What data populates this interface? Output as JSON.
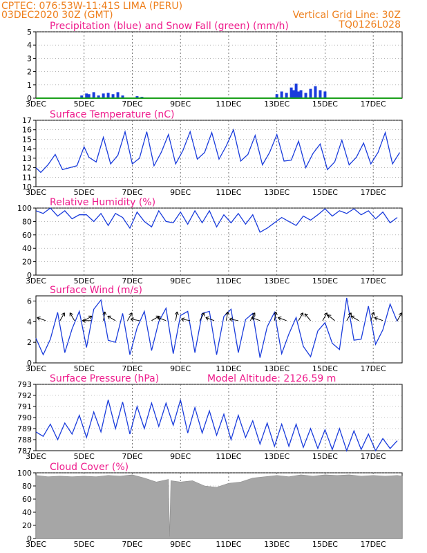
{
  "header": {
    "left_line1": "CPTEC:   076:53W-11:41S  LIMA (PERU)",
    "left_line2": "03DEC2020 30Z (GMT)",
    "right_line1": "Vertical Grid Line: 30Z",
    "right_line2": "TQ0126L028"
  },
  "colors": {
    "header": "#ee7f1c",
    "panel_title": "#ee1c8c",
    "series": "#1a3cdc",
    "snow": "#1aa01a",
    "cloud": "#a6a6a6"
  },
  "x_ticks": [
    "3DEC",
    "5DEC",
    "7DEC",
    "9DEC",
    "11DEC",
    "13DEC",
    "15DEC",
    "17DEC"
  ],
  "chart_data": [
    {
      "type": "bar",
      "title": "Precipitation (blue) and Snow Fall (green) (mm/h)",
      "ylim": [
        0,
        5
      ],
      "yticks": [
        "0",
        "1",
        "2",
        "3",
        "4",
        "5"
      ],
      "grid": "vertical dashed",
      "x_range_days": [
        3,
        18.2
      ],
      "series": [
        {
          "name": "Precipitation",
          "x": [
            4.9,
            5.1,
            5.2,
            5.4,
            5.6,
            5.8,
            6.0,
            6.2,
            6.4,
            6.6,
            7.2,
            7.4,
            13.0,
            13.2,
            13.4,
            13.6,
            13.7,
            13.8,
            13.9,
            14.0,
            14.2,
            14.4,
            14.6,
            14.8,
            15.0
          ],
          "values": [
            0.2,
            0.35,
            0.3,
            0.45,
            0.2,
            0.35,
            0.4,
            0.3,
            0.45,
            0.2,
            0.15,
            0.1,
            0.3,
            0.5,
            0.4,
            0.8,
            0.6,
            1.1,
            0.5,
            0.6,
            0.4,
            0.7,
            0.9,
            0.6,
            0.5
          ]
        },
        {
          "name": "Snow Fall",
          "x": [
            3,
            18.2
          ],
          "values": [
            0,
            0
          ]
        }
      ]
    },
    {
      "type": "line",
      "title": "Surface Temperature (nC)",
      "ylim": [
        10,
        17
      ],
      "yticks": [
        "10",
        "11",
        "12",
        "13",
        "14",
        "15",
        "16",
        "17"
      ],
      "x": [
        3.0,
        3.2,
        3.5,
        3.8,
        4.1,
        4.4,
        4.7,
        5.0,
        5.2,
        5.5,
        5.8,
        6.1,
        6.4,
        6.7,
        7.0,
        7.3,
        7.6,
        7.9,
        8.2,
        8.5,
        8.8,
        9.1,
        9.4,
        9.7,
        10.0,
        10.3,
        10.6,
        10.9,
        11.2,
        11.5,
        11.8,
        12.1,
        12.4,
        12.7,
        13.0,
        13.3,
        13.6,
        13.9,
        14.2,
        14.5,
        14.8,
        15.1,
        15.4,
        15.7,
        16.0,
        16.3,
        16.6,
        16.9,
        17.2,
        17.5,
        17.8,
        18.1
      ],
      "values": [
        12.0,
        11.5,
        12.3,
        13.4,
        11.8,
        12.0,
        12.2,
        14.2,
        13.1,
        12.6,
        15.2,
        12.4,
        13.3,
        15.8,
        12.4,
        13.0,
        15.8,
        12.2,
        13.6,
        15.5,
        12.4,
        13.8,
        15.8,
        12.9,
        13.6,
        15.7,
        12.9,
        14.3,
        16.0,
        12.7,
        13.4,
        15.4,
        12.3,
        13.6,
        15.5,
        12.7,
        12.8,
        14.8,
        12.0,
        13.5,
        14.5,
        11.8,
        12.6,
        14.9,
        12.3,
        13.1,
        14.6,
        12.4,
        13.6,
        15.7,
        12.4,
        13.6
      ]
    },
    {
      "type": "line",
      "title": "Relative Humidity (%)",
      "ylim": [
        0,
        100
      ],
      "yticks": [
        "0",
        "20",
        "40",
        "60",
        "80",
        "100"
      ],
      "x": [
        3.0,
        3.3,
        3.6,
        3.9,
        4.2,
        4.5,
        4.8,
        5.1,
        5.4,
        5.7,
        6.0,
        6.3,
        6.6,
        6.9,
        7.2,
        7.5,
        7.8,
        8.1,
        8.4,
        8.7,
        9.0,
        9.3,
        9.6,
        9.9,
        10.2,
        10.5,
        10.8,
        11.1,
        11.4,
        11.7,
        12.0,
        12.3,
        12.6,
        12.9,
        13.2,
        13.5,
        13.8,
        14.1,
        14.4,
        14.7,
        15.0,
        15.3,
        15.6,
        15.9,
        16.2,
        16.5,
        16.8,
        17.1,
        17.4,
        17.7,
        18.0
      ],
      "values": [
        96,
        92,
        100,
        88,
        96,
        84,
        90,
        90,
        80,
        92,
        74,
        92,
        86,
        70,
        94,
        80,
        72,
        96,
        80,
        78,
        94,
        76,
        96,
        78,
        96,
        72,
        90,
        78,
        92,
        76,
        90,
        64,
        70,
        78,
        86,
        80,
        74,
        88,
        82,
        90,
        99,
        88,
        96,
        92,
        99,
        90,
        96,
        84,
        94,
        78,
        86
      ]
    },
    {
      "type": "line",
      "title": "Surface Wind (m/s)",
      "ylim": [
        0,
        6.5
      ],
      "yticks": [
        "0",
        "2",
        "4",
        "6"
      ],
      "x": [
        3.0,
        3.3,
        3.6,
        3.9,
        4.2,
        4.5,
        4.8,
        5.1,
        5.4,
        5.7,
        6.0,
        6.3,
        6.6,
        6.9,
        7.2,
        7.5,
        7.8,
        8.1,
        8.4,
        8.7,
        9.0,
        9.3,
        9.6,
        9.9,
        10.2,
        10.5,
        10.8,
        11.1,
        11.4,
        11.7,
        12.0,
        12.3,
        12.6,
        12.9,
        13.2,
        13.5,
        13.8,
        14.1,
        14.4,
        14.7,
        15.0,
        15.3,
        15.6,
        15.9,
        16.2,
        16.5,
        16.8,
        17.1,
        17.4,
        17.7,
        18.0
      ],
      "values": [
        2.4,
        0.8,
        2.3,
        4.9,
        1.0,
        3.3,
        5.0,
        1.5,
        5.2,
        6.1,
        2.2,
        2.0,
        4.8,
        0.8,
        3.4,
        5.0,
        1.2,
        4.0,
        5.3,
        0.9,
        4.6,
        5.0,
        1.0,
        4.8,
        5.0,
        0.8,
        4.5,
        5.2,
        1.0,
        4.2,
        4.8,
        0.5,
        3.5,
        4.9,
        0.9,
        2.8,
        4.4,
        1.6,
        0.6,
        3.1,
        3.9,
        1.9,
        1.3,
        6.3,
        2.2,
        2.3,
        5.5,
        1.8,
        3.2,
        5.7,
        4.0
      ]
    },
    {
      "type": "line",
      "title": "Surface Pressure (hPa)",
      "annotation": "Model Altitude: 2126.59  m",
      "ylim": [
        787,
        793
      ],
      "yticks": [
        "787",
        "788",
        "789",
        "790",
        "791",
        "792",
        "793"
      ],
      "x": [
        3.0,
        3.3,
        3.6,
        3.9,
        4.2,
        4.5,
        4.8,
        5.1,
        5.4,
        5.7,
        6.0,
        6.3,
        6.6,
        6.9,
        7.2,
        7.5,
        7.8,
        8.1,
        8.4,
        8.7,
        9.0,
        9.3,
        9.6,
        9.9,
        10.2,
        10.5,
        10.8,
        11.1,
        11.4,
        11.7,
        12.0,
        12.3,
        12.6,
        12.9,
        13.2,
        13.5,
        13.8,
        14.1,
        14.4,
        14.7,
        15.0,
        15.3,
        15.6,
        15.9,
        16.2,
        16.5,
        16.8,
        17.1,
        17.4,
        17.7,
        18.0
      ],
      "values": [
        788.7,
        788.3,
        789.4,
        788.0,
        789.5,
        788.5,
        790.2,
        788.2,
        790.5,
        788.7,
        791.6,
        789.0,
        791.4,
        788.5,
        791.0,
        789.0,
        791.3,
        789.2,
        791.3,
        789.3,
        791.6,
        788.6,
        790.9,
        788.6,
        790.6,
        788.4,
        790.3,
        788.0,
        790.2,
        788.2,
        789.7,
        787.6,
        789.5,
        787.4,
        789.4,
        787.4,
        789.4,
        787.3,
        789.0,
        787.2,
        788.9,
        787.1,
        789.0,
        787.0,
        788.8,
        787.1,
        788.5,
        787.0,
        788.1,
        787.2,
        787.9
      ]
    },
    {
      "type": "area",
      "title": "Cloud Cover (%)",
      "ylim": [
        0,
        100
      ],
      "yticks": [
        "0",
        "20",
        "40",
        "60",
        "80",
        "100"
      ],
      "x": [
        3.0,
        3.5,
        4.0,
        4.5,
        5.0,
        5.5,
        6.0,
        6.5,
        7.0,
        7.5,
        8.0,
        8.5,
        8.55,
        8.6,
        9.0,
        9.5,
        10.0,
        10.5,
        11.0,
        11.5,
        12.0,
        12.5,
        13.0,
        13.5,
        14.0,
        14.5,
        15.0,
        15.5,
        16.0,
        16.5,
        17.0,
        17.5,
        18.0,
        18.2
      ],
      "values": [
        96,
        94,
        95,
        94,
        95,
        94,
        96,
        95,
        97,
        92,
        86,
        90,
        3,
        88,
        86,
        88,
        80,
        78,
        84,
        86,
        92,
        94,
        96,
        94,
        97,
        95,
        97,
        96,
        97,
        95,
        96,
        95,
        96,
        95
      ]
    }
  ]
}
